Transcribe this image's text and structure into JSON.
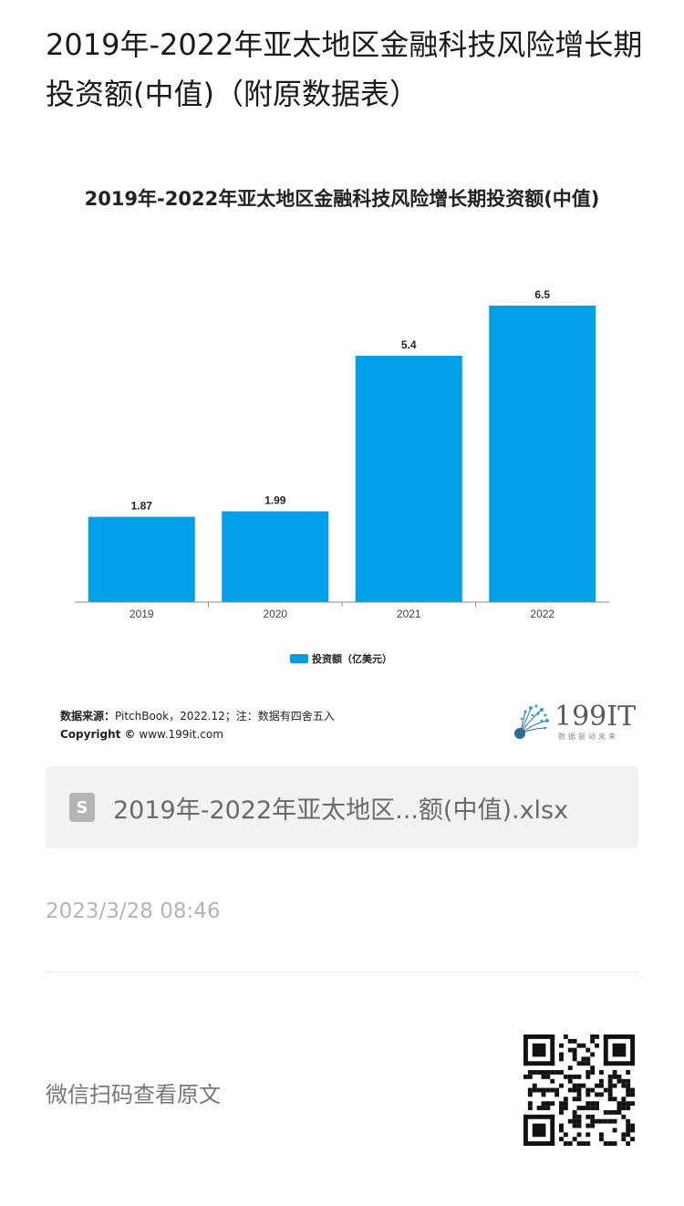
{
  "article": {
    "title": "2019年-2022年亚太地区金融科技风险增长期投资额(中值)（附原数据表）"
  },
  "chart_data": {
    "type": "bar",
    "title": "2019年-2022年亚太地区金融科技风险增长期投资额(中值)",
    "categories": [
      "2019",
      "2020",
      "2021",
      "2022"
    ],
    "series": [
      {
        "name": "投资额（亿美元）",
        "values": [
          1.87,
          1.99,
          5.4,
          6.5
        ],
        "color": "#00a0e9"
      }
    ],
    "data_labels": [
      "1.87",
      "1.99",
      "5.4",
      "6.5"
    ],
    "ylim": [
      0,
      6.5
    ],
    "grid": false,
    "legend_position": "bottom"
  },
  "source": {
    "label": "数据来源：",
    "text": "PitchBook，2022.12；注：数据有四舍五入",
    "copyright_label": "Copyright ©",
    "copyright_text": "www.199it.com"
  },
  "logo": {
    "text": "199IT",
    "subtitle": "数据驱动未来"
  },
  "attachment": {
    "icon": "spreadsheet-file-icon",
    "icon_glyph": "S",
    "filename": "2019年-2022年亚太地区...额(中值).xlsx"
  },
  "timestamp": "2023/3/28 08:46",
  "qr": {
    "label": "微信扫码查看原文",
    "icon": "qr-code-icon"
  }
}
